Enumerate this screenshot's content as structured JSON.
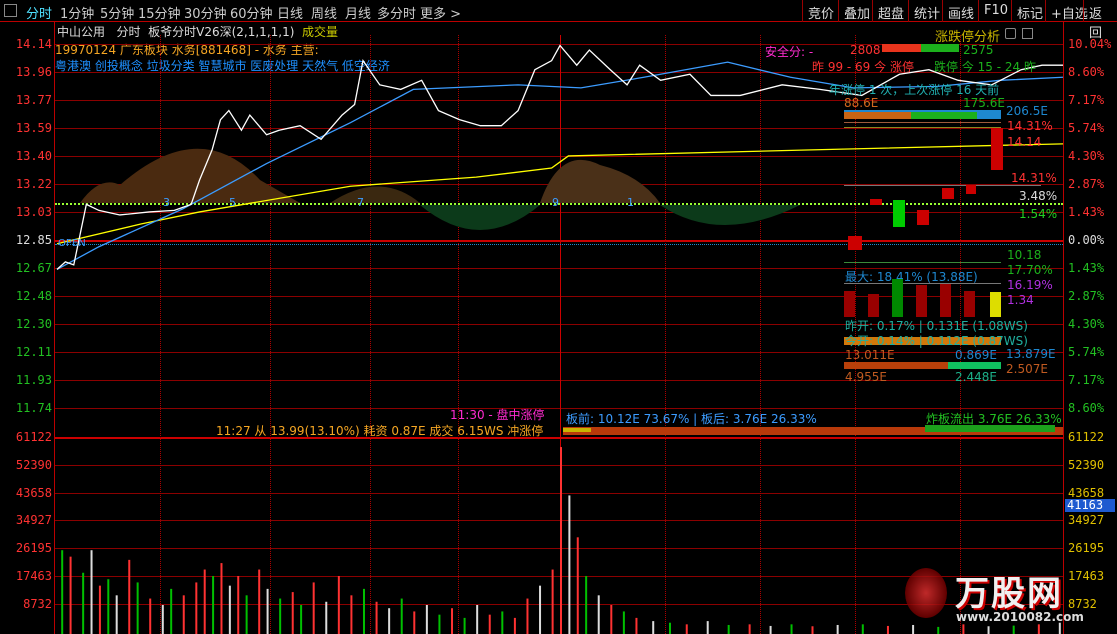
{
  "toolbar": {
    "tabs": [
      "分时",
      "1分钟",
      "5分钟",
      "15分钟",
      "30分钟",
      "60分钟",
      "日线",
      "周线",
      "月线",
      "多分时",
      "更多 >"
    ],
    "active": "分时",
    "right_buttons": [
      "竞价",
      "叠加",
      "超盘",
      "统计",
      "画线",
      "F10",
      "标记",
      "+自选",
      "返回"
    ]
  },
  "header": {
    "stock": "中山公用",
    "mode": "分时",
    "indicator": "板爷分时V26深(2,1,1,1,1)",
    "volume_label": "成交量"
  },
  "info": {
    "line1": "19970124  广东板块  水务[881468] - 水务  主营:",
    "line2": "粤港澳 创投概念 垃圾分类 智慧城市 医废处理 天然气 低空经济"
  },
  "price_axis": {
    "left": [
      "14.14",
      "13.96",
      "13.77",
      "13.59",
      "13.40",
      "13.22",
      "13.03",
      "12.85",
      "12.67",
      "12.48",
      "12.30",
      "12.11",
      "11.93",
      "11.74"
    ],
    "right": [
      "10.04%",
      "8.60%",
      "7.17%",
      "5.74%",
      "4.30%",
      "2.87%",
      "1.43%",
      "0.00%",
      "1.43%",
      "2.87%",
      "4.30%",
      "5.74%",
      "7.17%",
      "8.60%"
    ]
  },
  "volume_axis": {
    "left": [
      "61122",
      "52390",
      "43658",
      "34927",
      "26195",
      "17463",
      "8732"
    ],
    "right": [
      "61122",
      "52390",
      "43658",
      "34927",
      "26195",
      "17463",
      "8732"
    ],
    "current": "41163"
  },
  "chart_markers": {
    "open_label": "OPEN",
    "numbers": [
      "3",
      "5",
      "7",
      "9",
      "1"
    ]
  },
  "price_series": [
    [
      0,
      12.65
    ],
    [
      2,
      12.7
    ],
    [
      4,
      12.68
    ],
    [
      7,
      13.08
    ],
    [
      10,
      13.04
    ],
    [
      15,
      13.01
    ],
    [
      22,
      13.03
    ],
    [
      28,
      13.04
    ],
    [
      32,
      13.08
    ],
    [
      34,
      13.24
    ],
    [
      37,
      13.44
    ],
    [
      39,
      13.64
    ],
    [
      41,
      13.7
    ],
    [
      44,
      13.57
    ],
    [
      46,
      13.67
    ],
    [
      50,
      13.54
    ],
    [
      53,
      13.57
    ],
    [
      58,
      13.6
    ],
    [
      63,
      13.51
    ],
    [
      68,
      13.67
    ],
    [
      71,
      13.74
    ],
    [
      73,
      14.03
    ],
    [
      77,
      13.87
    ],
    [
      82,
      13.84
    ],
    [
      87,
      13.9
    ],
    [
      91,
      13.7
    ],
    [
      96,
      13.64
    ],
    [
      101,
      13.6
    ],
    [
      106,
      13.6
    ],
    [
      110,
      13.7
    ],
    [
      114,
      13.97
    ],
    [
      118,
      14.03
    ],
    [
      120,
      14.13
    ],
    [
      124,
      14.0
    ],
    [
      127,
      14.1
    ],
    [
      132,
      13.97
    ],
    [
      136,
      13.87
    ],
    [
      139,
      14.0
    ],
    [
      144,
      13.9
    ],
    [
      151,
      13.94
    ],
    [
      156,
      13.8
    ],
    [
      163,
      13.8
    ],
    [
      173,
      13.87
    ],
    [
      182,
      13.84
    ],
    [
      192,
      13.8
    ],
    [
      201,
      13.94
    ],
    [
      208,
      13.97
    ],
    [
      215,
      13.9
    ],
    [
      223,
      13.87
    ],
    [
      230,
      13.97
    ],
    [
      235,
      14.0
    ],
    [
      240,
      14.0
    ]
  ],
  "avg_series": [
    [
      0,
      12.65
    ],
    [
      10,
      12.8
    ],
    [
      30,
      13.05
    ],
    [
      50,
      13.35
    ],
    [
      70,
      13.62
    ],
    [
      85,
      13.84
    ],
    [
      110,
      13.87
    ],
    [
      125,
      13.85
    ],
    [
      140,
      13.92
    ],
    [
      160,
      14.02
    ],
    [
      175,
      13.92
    ],
    [
      190,
      13.85
    ],
    [
      210,
      13.86
    ],
    [
      225,
      13.9
    ],
    [
      240,
      13.92
    ]
  ],
  "yellow_series": [
    [
      0,
      12.82
    ],
    [
      20,
      12.95
    ],
    [
      34,
      13.03
    ],
    [
      70,
      13.2
    ],
    [
      100,
      13.26
    ],
    [
      118,
      13.32
    ],
    [
      122,
      13.4
    ],
    [
      180,
      13.44
    ],
    [
      240,
      13.48
    ]
  ],
  "volume_series": [
    [
      1,
      26000,
      "g"
    ],
    [
      3,
      24000,
      "r"
    ],
    [
      6,
      19000,
      "g"
    ],
    [
      8,
      26000,
      "w"
    ],
    [
      10,
      15000,
      "r"
    ],
    [
      12,
      17000,
      "g"
    ],
    [
      14,
      12000,
      "w"
    ],
    [
      17,
      23000,
      "r"
    ],
    [
      19,
      16000,
      "g"
    ],
    [
      22,
      11000,
      "r"
    ],
    [
      25,
      9000,
      "w"
    ],
    [
      27,
      14000,
      "g"
    ],
    [
      30,
      12000,
      "r"
    ],
    [
      33,
      16000,
      "r"
    ],
    [
      35,
      20000,
      "r"
    ],
    [
      37,
      18000,
      "g"
    ],
    [
      39,
      22000,
      "r"
    ],
    [
      41,
      15000,
      "w"
    ],
    [
      43,
      18000,
      "r"
    ],
    [
      45,
      12000,
      "g"
    ],
    [
      48,
      20000,
      "r"
    ],
    [
      50,
      14000,
      "w"
    ],
    [
      53,
      11000,
      "g"
    ],
    [
      56,
      13000,
      "r"
    ],
    [
      58,
      9000,
      "g"
    ],
    [
      61,
      16000,
      "r"
    ],
    [
      64,
      10000,
      "w"
    ],
    [
      67,
      18000,
      "r"
    ],
    [
      70,
      12000,
      "r"
    ],
    [
      73,
      14000,
      "g"
    ],
    [
      76,
      10000,
      "r"
    ],
    [
      79,
      8000,
      "w"
    ],
    [
      82,
      11000,
      "g"
    ],
    [
      85,
      7000,
      "r"
    ],
    [
      88,
      9000,
      "w"
    ],
    [
      91,
      6000,
      "g"
    ],
    [
      94,
      8000,
      "r"
    ],
    [
      97,
      5000,
      "g"
    ],
    [
      100,
      9000,
      "w"
    ],
    [
      103,
      6000,
      "r"
    ],
    [
      106,
      7000,
      "g"
    ],
    [
      109,
      5000,
      "r"
    ],
    [
      112,
      11000,
      "r"
    ],
    [
      115,
      15000,
      "w"
    ],
    [
      118,
      20000,
      "r"
    ],
    [
      120,
      58000,
      "r"
    ],
    [
      122,
      43000,
      "w"
    ],
    [
      124,
      30000,
      "r"
    ],
    [
      126,
      18000,
      "g"
    ],
    [
      129,
      12000,
      "w"
    ],
    [
      132,
      9000,
      "r"
    ],
    [
      135,
      7000,
      "g"
    ],
    [
      138,
      5000,
      "r"
    ],
    [
      142,
      4000,
      "w"
    ],
    [
      146,
      3500,
      "g"
    ],
    [
      150,
      3000,
      "r"
    ],
    [
      155,
      4000,
      "w"
    ],
    [
      160,
      2800,
      "g"
    ],
    [
      165,
      3000,
      "r"
    ],
    [
      170,
      2500,
      "w"
    ],
    [
      175,
      3000,
      "g"
    ],
    [
      180,
      2400,
      "r"
    ],
    [
      186,
      2800,
      "w"
    ],
    [
      192,
      3000,
      "g"
    ],
    [
      198,
      2500,
      "r"
    ],
    [
      204,
      2800,
      "w"
    ],
    [
      210,
      2200,
      "g"
    ],
    [
      216,
      3000,
      "r"
    ],
    [
      222,
      2400,
      "w"
    ],
    [
      228,
      2600,
      "g"
    ],
    [
      234,
      3000,
      "r"
    ],
    [
      239,
      3500,
      "w"
    ]
  ],
  "bottom_notes": {
    "left": "11:27 从 13.99(13.10%) 耗资 0.87E 成交 6.15WS 冲涨停",
    "midday": "11:30 - 盘中涨停",
    "board_before": "板前: 10.12E  73.67% | 板后: 3.76E  26.33%",
    "blast_outflow": "炸板流出 3.76E  26.33%"
  },
  "panel": {
    "title": "涨跌停分析",
    "safety": "安全分: -",
    "up_count": "2808",
    "down_count": "2575",
    "yesterday_today_up": "昨 99 - 69 今 涨停",
    "limit_down": "跌停 今 15 - 24 昨",
    "year_limit": "年涨停 1 次，上次涨停 16 天前",
    "bar_left": "88.6E",
    "bar_mid": "175.6E",
    "bar_total": "206.5E",
    "pct1": "14.31%",
    "price1": "14.14",
    "pct2": "14.31%",
    "pct3": "3.48%",
    "pct4": "1.54%",
    "v1": "10.18",
    "max_label": "最大: 18.41% (13.88E)",
    "v2": "17.70%",
    "v3": "16.19%",
    "v4": "1.34",
    "yest_open": "昨开: 0.17% | 0.131E (1.08WS)",
    "today_open": "今开: 0.14% | 0.112E (0.87WS)",
    "e1": "13.879E",
    "e2": "13.011E",
    "e3": "0.869E",
    "e4": "2.507E",
    "e5": "4.955E",
    "e6": "2.448E"
  },
  "watermark": {
    "logo": "万股网",
    "site": "www.2010082.com"
  },
  "colors": {
    "up": "#ff3232",
    "down": "#00c000",
    "price_line": "#ffffff",
    "avg_line": "#3c9cff",
    "yellow": "#ffff00",
    "grid": "#8b0000"
  }
}
